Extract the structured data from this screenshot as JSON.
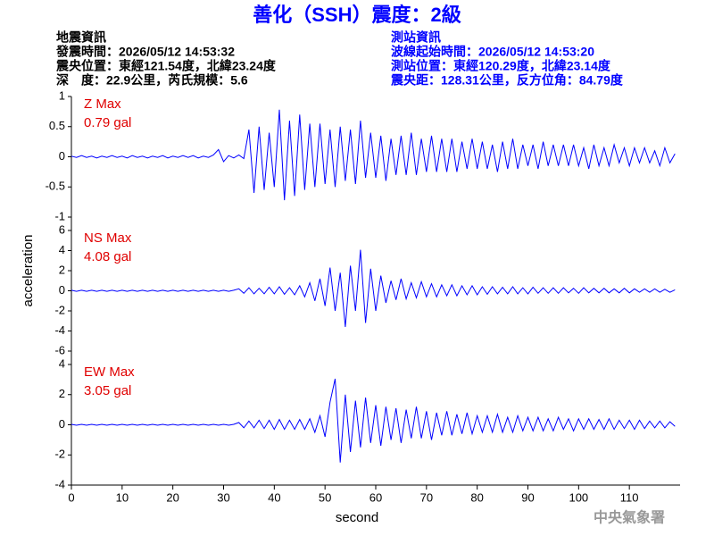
{
  "chart_data": {
    "type": "line",
    "title": "善化（SSH）震度：2級",
    "info_left": [
      "地震資訊",
      "發震時間：2026/05/12 14:53:32",
      "震央位置：東經121.54度，北緯23.24度",
      "深　度：22.9公里，芮氏規模：5.6"
    ],
    "info_right": [
      "測站資訊",
      "波線起始時間：2026/05/12 14:53:20",
      "測站位置：東經120.29度，北緯23.14度",
      "震央距：128.31公里，反方位角：84.79度"
    ],
    "footer": "中央氣象署",
    "xlabel": "second",
    "ylabel": "acceleration",
    "xlim": [
      0,
      120
    ],
    "xticks": [
      0,
      10,
      20,
      30,
      40,
      50,
      60,
      70,
      80,
      90,
      100,
      110
    ],
    "annotation_color": "#e00000",
    "x": [
      0,
      1,
      2,
      3,
      4,
      5,
      6,
      7,
      8,
      9,
      10,
      11,
      12,
      13,
      14,
      15,
      16,
      17,
      18,
      19,
      20,
      21,
      22,
      23,
      24,
      25,
      26,
      27,
      28,
      29,
      30,
      31,
      32,
      33,
      34,
      35,
      36,
      37,
      38,
      39,
      40,
      41,
      42,
      43,
      44,
      45,
      46,
      47,
      48,
      49,
      50,
      51,
      52,
      53,
      54,
      55,
      56,
      57,
      58,
      59,
      60,
      61,
      62,
      63,
      64,
      65,
      66,
      67,
      68,
      69,
      70,
      71,
      72,
      73,
      74,
      75,
      76,
      77,
      78,
      79,
      80,
      81,
      82,
      83,
      84,
      85,
      86,
      87,
      88,
      89,
      90,
      91,
      92,
      93,
      94,
      95,
      96,
      97,
      98,
      99,
      100,
      101,
      102,
      103,
      104,
      105,
      106,
      107,
      108,
      109,
      110,
      111,
      112,
      113,
      114,
      115,
      116,
      117,
      118,
      119
    ],
    "series": [
      {
        "name": "Z Max",
        "annotation": "0.79 gal",
        "color": "#0000ff",
        "ylim": [
          -1,
          1
        ],
        "yticks": [
          -1,
          -0.5,
          0,
          0.5,
          1
        ],
        "values": [
          0.01,
          -0.01,
          0.02,
          -0.01,
          0.01,
          -0.02,
          0.01,
          -0.01,
          0.02,
          -0.01,
          0.01,
          -0.02,
          0.02,
          -0.01,
          0.01,
          -0.02,
          0.01,
          -0.01,
          0.02,
          -0.02,
          0.01,
          -0.01,
          0.02,
          -0.01,
          0.02,
          -0.02,
          0.01,
          -0.01,
          0.03,
          0.12,
          -0.08,
          0.02,
          -0.02,
          0.03,
          -0.03,
          0.45,
          -0.6,
          0.5,
          -0.55,
          0.4,
          -0.5,
          0.78,
          -0.72,
          0.6,
          -0.65,
          0.7,
          -0.55,
          0.55,
          -0.5,
          0.55,
          -0.45,
          0.45,
          -0.5,
          0.5,
          -0.4,
          0.45,
          -0.45,
          0.6,
          -0.35,
          0.4,
          -0.35,
          0.35,
          -0.4,
          0.3,
          -0.3,
          0.35,
          -0.3,
          0.4,
          -0.3,
          0.3,
          -0.25,
          0.35,
          -0.25,
          0.3,
          -0.25,
          0.3,
          -0.25,
          0.25,
          -0.2,
          0.3,
          -0.2,
          0.25,
          -0.2,
          0.2,
          -0.25,
          0.25,
          -0.2,
          0.3,
          -0.2,
          0.2,
          -0.15,
          0.2,
          -0.2,
          0.25,
          -0.15,
          0.2,
          -0.15,
          0.2,
          -0.15,
          0.2,
          -0.15,
          0.15,
          -0.2,
          0.2,
          -0.15,
          0.15,
          -0.15,
          0.2,
          -0.1,
          0.15,
          -0.15,
          0.15,
          -0.1,
          0.15,
          -0.1,
          0.1,
          -0.15,
          0.15,
          -0.1,
          0.05
        ]
      },
      {
        "name": "NS Max",
        "annotation": "4.08 gal",
        "color": "#0000ff",
        "ylim": [
          -6,
          6
        ],
        "yticks": [
          -6,
          -4,
          -2,
          0,
          2,
          4,
          6
        ],
        "values": [
          0.05,
          -0.05,
          0.05,
          -0.05,
          0.05,
          -0.05,
          0.05,
          -0.05,
          0.05,
          -0.05,
          0.05,
          -0.05,
          0.05,
          -0.05,
          0.05,
          -0.05,
          0.05,
          -0.05,
          0.05,
          -0.05,
          0.05,
          -0.05,
          0.05,
          -0.05,
          0.05,
          -0.05,
          0.05,
          -0.05,
          0.05,
          -0.05,
          0.05,
          -0.05,
          0.05,
          0.2,
          -0.25,
          0.3,
          -0.3,
          0.25,
          -0.3,
          0.35,
          -0.3,
          0.4,
          -0.35,
          0.3,
          -0.4,
          0.5,
          -0.6,
          0.8,
          -1.0,
          1.2,
          -1.5,
          2.3,
          -2.0,
          1.8,
          -3.6,
          2.5,
          -2.0,
          4.08,
          -3.2,
          2.2,
          -2.0,
          1.5,
          -1.2,
          1.0,
          -0.9,
          1.2,
          -0.8,
          0.8,
          -0.7,
          0.9,
          -0.6,
          0.7,
          -0.6,
          0.6,
          -0.5,
          0.6,
          -0.5,
          0.5,
          -0.4,
          0.5,
          -0.4,
          0.4,
          -0.35,
          0.4,
          -0.3,
          0.35,
          -0.3,
          0.4,
          -0.3,
          0.3,
          -0.3,
          0.35,
          -0.25,
          0.3,
          -0.25,
          0.3,
          -0.25,
          0.3,
          -0.2,
          0.25,
          -0.25,
          0.3,
          -0.2,
          0.25,
          -0.2,
          0.25,
          -0.2,
          0.2,
          -0.2,
          0.25,
          -0.2,
          0.2,
          -0.15,
          0.2,
          -0.15,
          0.2,
          -0.15,
          0.15,
          -0.15,
          0.1
        ]
      },
      {
        "name": "EW Max",
        "annotation": "3.05 gal",
        "color": "#0000ff",
        "ylim": [
          -4,
          4
        ],
        "yticks": [
          -4,
          -2,
          0,
          2,
          4
        ],
        "values": [
          0.03,
          -0.03,
          0.03,
          -0.03,
          0.03,
          -0.03,
          0.03,
          -0.03,
          0.03,
          -0.03,
          0.03,
          -0.03,
          0.03,
          -0.03,
          0.03,
          -0.03,
          0.03,
          -0.03,
          0.03,
          -0.03,
          0.03,
          -0.03,
          0.03,
          -0.03,
          0.03,
          -0.03,
          0.03,
          -0.03,
          0.03,
          -0.03,
          0.03,
          -0.03,
          0.03,
          0.15,
          -0.2,
          0.25,
          -0.2,
          0.3,
          -0.25,
          0.3,
          -0.3,
          0.35,
          -0.3,
          0.3,
          -0.3,
          0.35,
          -0.3,
          0.4,
          -0.5,
          0.6,
          -0.8,
          1.5,
          3.05,
          -2.5,
          2.0,
          -1.8,
          1.6,
          -1.5,
          1.8,
          -1.2,
          1.3,
          -1.4,
          1.2,
          -1.0,
          1.1,
          -1.2,
          1.0,
          -0.9,
          1.2,
          -0.9,
          0.9,
          -1.0,
          0.8,
          -0.7,
          0.9,
          -0.7,
          0.7,
          -0.6,
          0.8,
          -0.6,
          0.6,
          -0.5,
          0.6,
          -0.5,
          0.7,
          -0.5,
          0.5,
          -0.5,
          0.6,
          -0.4,
          0.5,
          -0.4,
          0.5,
          -0.4,
          0.4,
          -0.4,
          0.5,
          -0.3,
          0.4,
          -0.4,
          0.4,
          -0.3,
          0.4,
          -0.3,
          0.35,
          -0.3,
          0.4,
          -0.3,
          0.3,
          -0.25,
          0.3,
          -0.3,
          0.3,
          -0.25,
          0.25,
          -0.2,
          0.25,
          -0.2,
          0.2,
          -0.1
        ]
      }
    ]
  }
}
